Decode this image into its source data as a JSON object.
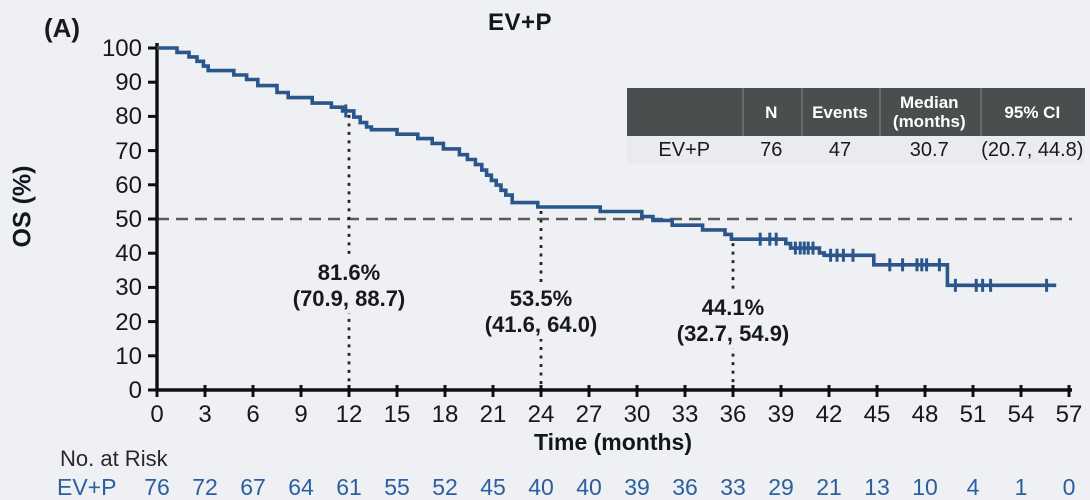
{
  "panel_label": "(A)",
  "title": "EV+P",
  "colors": {
    "background": "#eef0f4",
    "curve": "#2a568b",
    "risk_text": "#2b5fa0",
    "axis": "#0f0f0f",
    "median_dashed_line": "#5a5a5a",
    "dotted_line": "#26262a",
    "table_header_bg": "#4a4e4e",
    "table_header_text": "#ffffff",
    "table_row_bg": "#e9ebee"
  },
  "summary_table": {
    "headers": [
      "",
      "N",
      "Events",
      "Median\n(months)",
      "95% CI"
    ],
    "row": {
      "label": "EV+P",
      "n": "76",
      "events": "47",
      "median": "30.7",
      "ci": "(20.7, 44.8)"
    }
  },
  "annotations": [
    {
      "time": 12,
      "line1": "81.6%",
      "line2": "(70.9, 88.7)"
    },
    {
      "time": 24,
      "line1": "53.5%",
      "line2": "(41.6, 64.0)"
    },
    {
      "time": 36,
      "line1": "44.1%",
      "line2": "(32.7, 54.9)"
    }
  ],
  "risk_table": {
    "title": "No. at Risk",
    "row_label": "EV+P",
    "values": [
      76,
      72,
      67,
      64,
      61,
      55,
      52,
      45,
      40,
      40,
      39,
      36,
      33,
      29,
      21,
      13,
      10,
      4,
      1,
      0
    ]
  },
  "chart_data": {
    "type": "line",
    "subtype": "kaplan-meier-step",
    "title": "EV+P",
    "xlabel": "Time (months)",
    "ylabel": "OS (%)",
    "xlim": [
      0,
      57
    ],
    "ylim": [
      0,
      100
    ],
    "x_ticks": [
      0,
      3,
      6,
      9,
      12,
      15,
      18,
      21,
      24,
      27,
      30,
      33,
      36,
      39,
      42,
      45,
      48,
      51,
      54,
      57
    ],
    "y_ticks": [
      0,
      10,
      20,
      30,
      40,
      50,
      60,
      70,
      80,
      90,
      100
    ],
    "grid": false,
    "legend": "none",
    "reference_line_y": 50,
    "landmark_estimates": [
      {
        "time": 12,
        "survival_pct": 81.6,
        "ci_low": 70.9,
        "ci_high": 88.7
      },
      {
        "time": 24,
        "survival_pct": 53.5,
        "ci_low": 41.6,
        "ci_high": 64.0
      },
      {
        "time": 36,
        "survival_pct": 44.1,
        "ci_low": 32.7,
        "ci_high": 54.9
      }
    ],
    "series": [
      {
        "name": "EV+P",
        "n": 76,
        "events": 47,
        "median_months": 30.7,
        "median_ci": [
          20.7,
          44.8
        ],
        "color": "#2a568b",
        "end_time": 56.2,
        "steps": [
          [
            0,
            100
          ],
          [
            1.25,
            98.7
          ],
          [
            2.0,
            97.4
          ],
          [
            2.5,
            96.1
          ],
          [
            2.9,
            94.7
          ],
          [
            3.2,
            93.4
          ],
          [
            4.8,
            92.1
          ],
          [
            5.6,
            90.8
          ],
          [
            6.3,
            89.0
          ],
          [
            7.5,
            87.0
          ],
          [
            8.2,
            85.5
          ],
          [
            9.7,
            83.9
          ],
          [
            10.9,
            82.7
          ],
          [
            11.6,
            81.6
          ],
          [
            12.3,
            79.8
          ],
          [
            12.7,
            78.2
          ],
          [
            13.1,
            76.9
          ],
          [
            13.4,
            76.1
          ],
          [
            15.0,
            74.8
          ],
          [
            16.3,
            73.5
          ],
          [
            17.2,
            72.1
          ],
          [
            17.9,
            70.5
          ],
          [
            18.9,
            68.8
          ],
          [
            19.4,
            67.4
          ],
          [
            19.9,
            65.9
          ],
          [
            20.3,
            64.3
          ],
          [
            20.6,
            62.8
          ],
          [
            20.9,
            61.3
          ],
          [
            21.2,
            59.9
          ],
          [
            21.5,
            58.4
          ],
          [
            21.8,
            57.0
          ],
          [
            22.2,
            54.8
          ],
          [
            23.8,
            53.5
          ],
          [
            27.7,
            52.2
          ],
          [
            30.3,
            50.7
          ],
          [
            31.0,
            49.6
          ],
          [
            32.2,
            48.2
          ],
          [
            34.1,
            46.8
          ],
          [
            35.5,
            45.5
          ],
          [
            35.9,
            44.1
          ],
          [
            39.3,
            42.8
          ],
          [
            39.6,
            41.5
          ],
          [
            41.4,
            40.1
          ],
          [
            41.7,
            39.4
          ],
          [
            44.8,
            36.6
          ],
          [
            49.4,
            30.6
          ]
        ],
        "censor_marks": [
          [
            11.8,
            81.6
          ],
          [
            37.7,
            44.1
          ],
          [
            38.3,
            44.1
          ],
          [
            38.7,
            44.1
          ],
          [
            39.9,
            41.5
          ],
          [
            40.2,
            41.5
          ],
          [
            40.45,
            41.5
          ],
          [
            40.7,
            41.5
          ],
          [
            41.0,
            41.5
          ],
          [
            42.1,
            39.4
          ],
          [
            42.5,
            39.4
          ],
          [
            42.9,
            39.4
          ],
          [
            43.5,
            39.4
          ],
          [
            45.8,
            36.6
          ],
          [
            46.6,
            36.6
          ],
          [
            47.5,
            36.6
          ],
          [
            47.8,
            36.6
          ],
          [
            48.1,
            36.6
          ],
          [
            48.9,
            36.6
          ],
          [
            49.9,
            30.6
          ],
          [
            51.2,
            30.6
          ],
          [
            51.6,
            30.6
          ],
          [
            52.1,
            30.6
          ],
          [
            55.6,
            30.6
          ]
        ]
      }
    ],
    "dotted_vertical_lines": [
      {
        "time": 12,
        "top_value": 81.6
      },
      {
        "time": 24,
        "top_value": 53.5
      },
      {
        "time": 36,
        "top_value": 44.1
      }
    ]
  }
}
